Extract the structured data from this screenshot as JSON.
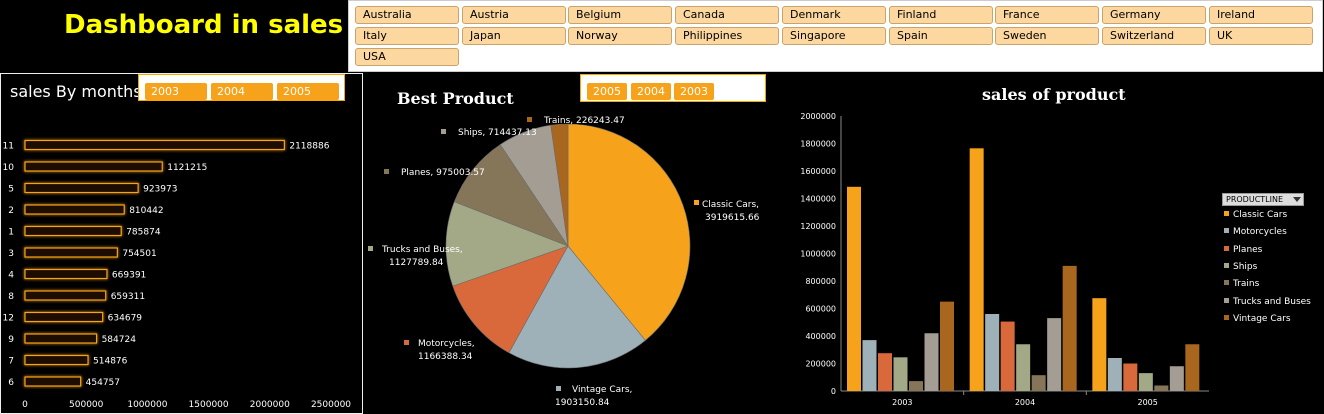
{
  "title": "Dashboard in sales",
  "countries": [
    "Australia",
    "Austria",
    "Belgium",
    "Canada",
    "Denmark",
    "Finland",
    "France",
    "Germany",
    "Ireland",
    "Italy",
    "Japan",
    "Norway",
    "Philippines",
    "Singapore",
    "Spain",
    "Sweden",
    "Switzerland",
    "UK",
    "USA"
  ],
  "months_panel": {
    "title": "sales By months",
    "years": [
      "2003",
      "2004",
      "2005"
    ]
  },
  "pie_panel": {
    "title": "Best Product",
    "years": [
      "2005",
      "2004",
      "2003"
    ]
  },
  "column_panel": {
    "title": "sales of product",
    "legend_header": "PRODUCTLINE"
  },
  "colors": {
    "accent": "#f7a21b",
    "title_yellow": "#ffff00",
    "slicer_button": "#fcd79f"
  },
  "chart_data": [
    {
      "type": "bar",
      "title": "sales By months",
      "orientation": "horizontal",
      "categories": [
        "11",
        "10",
        "5",
        "2",
        "1",
        "3",
        "4",
        "8",
        "12",
        "9",
        "7",
        "6"
      ],
      "values": [
        2118886,
        1121215,
        923973,
        810442,
        785874,
        754501,
        669391,
        659311,
        634679,
        584724,
        514876,
        454757
      ],
      "value_labels": [
        "2118886",
        "1121215",
        "923973",
        "810442",
        "785874",
        "754501",
        "669391",
        "659311",
        "634679",
        "584724",
        "514876",
        "454757"
      ],
      "xlim": [
        0,
        2500000
      ],
      "xticks": [
        "0",
        "500000",
        "1000000",
        "1500000",
        "2000000",
        "2500000"
      ]
    },
    {
      "type": "pie",
      "title": "Best Product",
      "slices": [
        {
          "name": "Classic Cars",
          "value": 3919615.66,
          "label": "Classic Cars,",
          "value_label": "3919615.66",
          "color": "#f7a21b"
        },
        {
          "name": "Vintage Cars",
          "value": 1903150.84,
          "label": "Vintage Cars,",
          "value_label": "1903150.84",
          "color": "#9fb1b8"
        },
        {
          "name": "Motorcycles",
          "value": 1166388.34,
          "label": "Motorcycles,",
          "value_label": "1166388.34",
          "color": "#d9683a"
        },
        {
          "name": "Trucks and Buses",
          "value": 1127789.84,
          "label": "Trucks and Buses,",
          "value_label": "1127789.84",
          "color": "#a3a986"
        },
        {
          "name": "Planes",
          "value": 975003.57,
          "label": "Planes, 975003.57",
          "value_label": "",
          "color": "#857659"
        },
        {
          "name": "Ships",
          "value": 714437.13,
          "label": "Ships, 714437.13",
          "value_label": "",
          "color": "#a49d93"
        },
        {
          "name": "Trains",
          "value": 226243.47,
          "label": "Trains, 226243.47",
          "value_label": "",
          "color": "#a8661f"
        }
      ]
    },
    {
      "type": "bar",
      "title": "sales of product",
      "categories": [
        "2003",
        "2004",
        "2005"
      ],
      "ylim": [
        0,
        2000000
      ],
      "yticks": [
        "0",
        "200000",
        "400000",
        "600000",
        "800000",
        "1000000",
        "1200000",
        "1400000",
        "1600000",
        "1800000",
        "2000000"
      ],
      "series": [
        {
          "name": "Classic Cars",
          "color": "#f7a21b",
          "values": [
            1485000,
            1765000,
            675000
          ]
        },
        {
          "name": "Motorcycles",
          "color": "#9fb1b8",
          "values": [
            370000,
            560000,
            240000
          ]
        },
        {
          "name": "Planes",
          "color": "#d9683a",
          "values": [
            275000,
            505000,
            200000
          ]
        },
        {
          "name": "Ships",
          "color": "#a3a986",
          "values": [
            245000,
            340000,
            130000
          ]
        },
        {
          "name": "Trains",
          "color": "#857659",
          "values": [
            72000,
            115000,
            40000
          ]
        },
        {
          "name": "Trucks and Buses",
          "color": "#a49d93",
          "values": [
            420000,
            530000,
            180000
          ]
        },
        {
          "name": "Vintage Cars",
          "color": "#a8661f",
          "values": [
            650000,
            910000,
            340000
          ]
        }
      ]
    }
  ]
}
